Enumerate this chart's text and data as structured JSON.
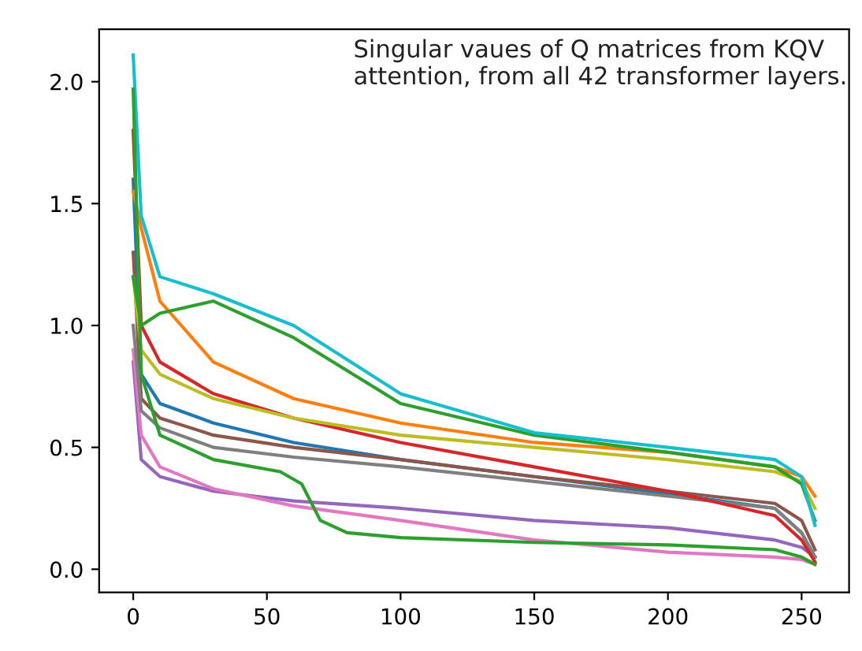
{
  "chart_data": {
    "type": "line",
    "annotations": [
      "Singular vaues of Q matrices from KQV attention, from all 42 transformer layers."
    ],
    "x": [
      0,
      3,
      10,
      30,
      60,
      100,
      150,
      200,
      240,
      250,
      255
    ],
    "xlim": [
      -12.75,
      267.75
    ],
    "ylim": [
      -0.095,
      2.215
    ],
    "xticks": [
      0,
      50,
      100,
      150,
      200,
      250
    ],
    "yticks": [
      {
        "value": 0,
        "label": "0.0"
      },
      {
        "value": 0.5,
        "label": "0.5"
      },
      {
        "value": 1,
        "label": "1.0"
      },
      {
        "value": 1.5,
        "label": "1.5"
      },
      {
        "value": 2,
        "label": "2.0"
      }
    ],
    "grid": false,
    "marker": "none",
    "line_style": "solid",
    "series": [
      {
        "color": "#9467bd",
        "values": [
          0.85,
          0.45,
          0.38,
          0.32,
          0.28,
          0.25,
          0.2,
          0.17,
          0.12,
          0.09,
          0.05
        ]
      },
      {
        "color": "#e377c2",
        "values": [
          0.9,
          0.55,
          0.42,
          0.33,
          0.26,
          0.2,
          0.12,
          0.07,
          0.05,
          0.04,
          0.02
        ]
      },
      {
        "color": "#1f77b4",
        "values": [
          1.6,
          0.8,
          0.68,
          0.6,
          0.52,
          0.45,
          0.38,
          0.31,
          0.25,
          0.15,
          0.05
        ]
      },
      {
        "color": "#8c564b",
        "values": [
          1.3,
          0.7,
          0.62,
          0.55,
          0.5,
          0.45,
          0.38,
          0.32,
          0.27,
          0.2,
          0.08
        ]
      },
      {
        "color": "#7f7f7f",
        "values": [
          1.0,
          0.65,
          0.58,
          0.5,
          0.46,
          0.42,
          0.36,
          0.3,
          0.25,
          0.15,
          0.05
        ]
      },
      {
        "color": "#d62728",
        "values": [
          1.8,
          1.0,
          0.85,
          0.72,
          0.62,
          0.52,
          0.42,
          0.32,
          0.22,
          0.12,
          0.03
        ]
      },
      {
        "color": "#bcbd22",
        "values": [
          1.2,
          0.9,
          0.8,
          0.7,
          0.62,
          0.55,
          0.5,
          0.45,
          0.4,
          0.36,
          0.25
        ]
      },
      {
        "color": "#ff7f0e",
        "values": [
          1.55,
          1.4,
          1.1,
          0.85,
          0.7,
          0.6,
          0.52,
          0.48,
          0.42,
          0.38,
          0.3
        ]
      },
      {
        "color": "#2ca02c",
        "values": [
          1.2,
          1.0,
          1.05,
          1.1,
          0.95,
          0.68,
          0.55,
          0.48,
          0.42,
          0.35,
          0.2
        ]
      },
      {
        "color": "#17becf",
        "values": [
          2.11,
          1.45,
          1.2,
          1.13,
          1.0,
          0.72,
          0.56,
          0.5,
          0.45,
          0.38,
          0.18
        ]
      },
      {
        "color": "#2ca02c",
        "x": [
          0,
          3,
          10,
          30,
          55,
          63,
          70,
          80,
          100,
          150,
          200,
          240,
          250,
          255
        ],
        "values": [
          1.97,
          0.8,
          0.55,
          0.45,
          0.4,
          0.35,
          0.2,
          0.15,
          0.13,
          0.11,
          0.1,
          0.08,
          0.05,
          0.02
        ]
      }
    ]
  }
}
